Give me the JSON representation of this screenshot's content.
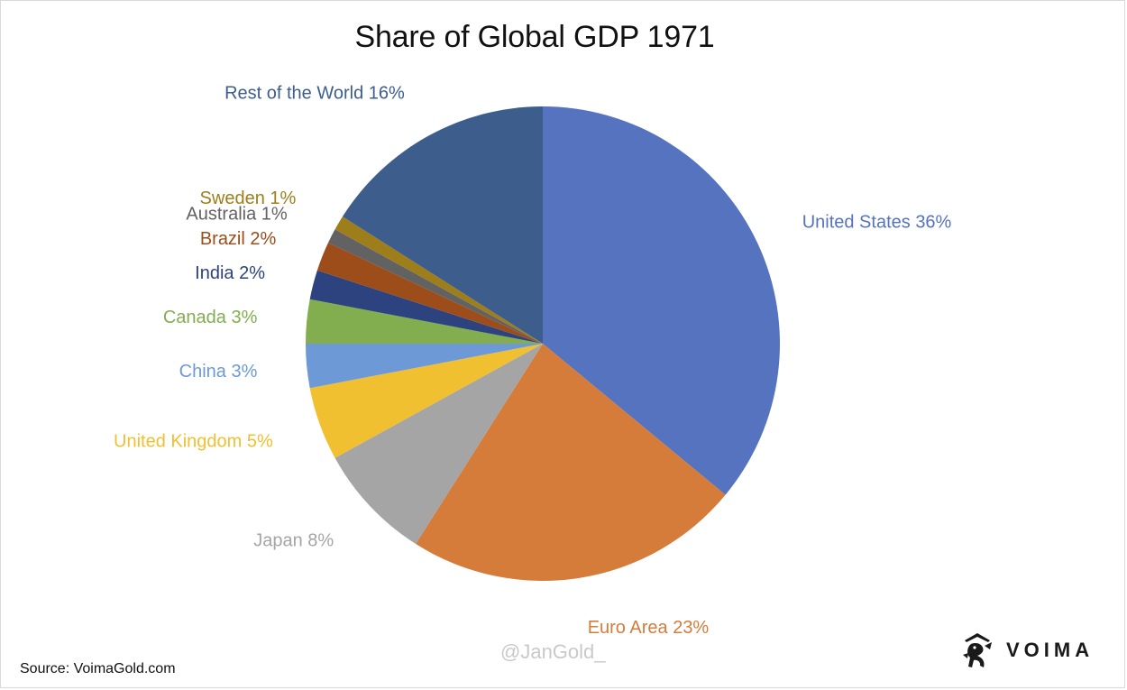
{
  "chart_data": {
    "type": "pie",
    "title": "Share of Global GDP 1971",
    "slices": [
      {
        "label": "United States",
        "pct_text": "36%",
        "value": 36,
        "color": "#5573BF"
      },
      {
        "label": "Euro Area",
        "pct_text": "23%",
        "value": 23,
        "color": "#D57C3A"
      },
      {
        "label": "Japan",
        "pct_text": "8%",
        "value": 8,
        "color": "#A5A5A5"
      },
      {
        "label": "United Kingdom",
        "pct_text": "5%",
        "value": 5,
        "color": "#F0C030"
      },
      {
        "label": "China",
        "pct_text": "3%",
        "value": 3,
        "color": "#6D9AD6"
      },
      {
        "label": "Canada",
        "pct_text": "3%",
        "value": 3,
        "color": "#82AE50"
      },
      {
        "label": "India",
        "pct_text": "2%",
        "value": 2,
        "color": "#2C4380"
      },
      {
        "label": "Brazil",
        "pct_text": "2%",
        "value": 2,
        "color": "#9C4D1A"
      },
      {
        "label": "Australia",
        "pct_text": "1%",
        "value": 1,
        "color": "#626262"
      },
      {
        "label": "Sweden",
        "pct_text": "1%",
        "value": 1,
        "color": "#9E7E1A"
      },
      {
        "label": "Rest of the World",
        "pct_text": "16%",
        "value": 16,
        "color": "#3D5E8C"
      }
    ]
  },
  "watermark": "@JanGold_",
  "source": "Source: VoimaGold.com",
  "brand": {
    "name": "VOIMA",
    "icon": "lion-crest-icon"
  }
}
